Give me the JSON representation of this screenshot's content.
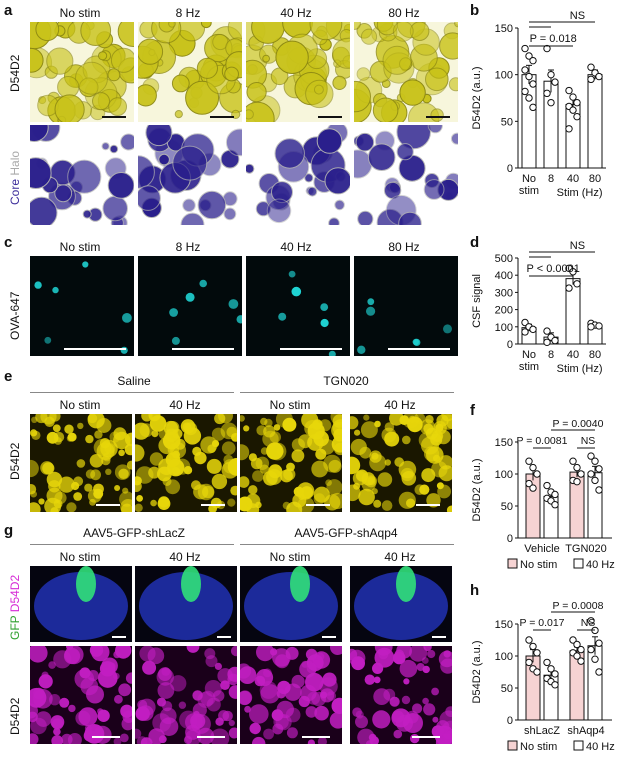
{
  "panels": {
    "a": {
      "label": "a",
      "columns": [
        "No stim",
        "8 Hz",
        "40 Hz",
        "80 Hz"
      ],
      "row_labels": [
        "D54D2",
        "Core",
        "Halo"
      ]
    },
    "c": {
      "label": "c",
      "columns": [
        "No stim",
        "8 Hz",
        "40 Hz",
        "80 Hz"
      ],
      "row_label": "OVA-647"
    },
    "e": {
      "label": "e",
      "groups": [
        "Saline",
        "TGN020"
      ],
      "columns": [
        "No stim",
        "40 Hz",
        "No stim",
        "40 Hz"
      ],
      "row_label": "D54D2"
    },
    "g": {
      "label": "g",
      "groups": [
        "AAV5-GFP-shLacZ",
        "AAV5-GFP-shAqp4"
      ],
      "columns": [
        "No stim",
        "40 Hz",
        "No stim",
        "40 Hz"
      ],
      "row_labels": [
        "GFP",
        "D54D2",
        "D54D2"
      ]
    }
  },
  "chart_data": [
    {
      "panel": "b",
      "type": "bar",
      "ylabel": "D54D2 (a.u.)",
      "xlabel": "Stim (Hz)",
      "categories": [
        "No stim",
        "8",
        "40",
        "80"
      ],
      "values": [
        100,
        93,
        68,
        100
      ],
      "errors": [
        10,
        12,
        8,
        5
      ],
      "points": [
        [
          128,
          120,
          115,
          105,
          98,
          90,
          82,
          75,
          65
        ],
        [
          128,
          100,
          92,
          80,
          70
        ],
        [
          83,
          76,
          70,
          66,
          62,
          55,
          42
        ],
        [
          108,
          102,
          98,
          95
        ]
      ],
      "ylim": [
        0,
        150
      ],
      "yticks": [
        0,
        50,
        100,
        150
      ],
      "annotations": [
        "NS",
        "P = 0.018"
      ]
    },
    {
      "panel": "d",
      "type": "bar",
      "ylabel": "CSF signal",
      "xlabel": "Stim (Hz)",
      "categories": [
        "No stim",
        "8",
        "40",
        "80"
      ],
      "values": [
        95,
        40,
        380,
        110
      ],
      "errors": [
        20,
        25,
        35,
        10
      ],
      "points": [
        [
          125,
          100,
          85,
          70
        ],
        [
          75,
          40,
          20,
          10
        ],
        [
          440,
          420,
          350,
          325
        ],
        [
          120,
          110,
          105,
          100
        ]
      ],
      "ylim": [
        0,
        500
      ],
      "yticks": [
        0,
        100,
        200,
        300,
        400,
        500
      ],
      "annotations": [
        "NS",
        "P < 0.0001"
      ]
    },
    {
      "panel": "f",
      "type": "bar",
      "ylabel": "D54D2 (a.u.)",
      "categories": [
        "Vehicle",
        "TGN020"
      ],
      "series": [
        {
          "name": "No stim",
          "values": [
            100,
            103
          ],
          "errors": [
            10,
            8
          ],
          "points": [
            [
              120,
              110,
              100,
              85,
              78
            ],
            [
              120,
              110,
              100,
              90,
              88
            ]
          ],
          "color": "#f6d3d3"
        },
        {
          "name": "40 Hz",
          "values": [
            65,
            102
          ],
          "errors": [
            6,
            10
          ],
          "points": [
            [
              82,
              72,
              68,
              62,
              58,
              52
            ],
            [
              128,
              120,
              108,
              100,
              90,
              75
            ]
          ],
          "color": "#ffffff"
        }
      ],
      "ylim": [
        0,
        150
      ],
      "yticks": [
        0,
        50,
        100,
        150
      ],
      "annotations": [
        "P = 0.0081",
        "NS",
        "P = 0.0040"
      ],
      "legend": [
        "No stim",
        "40 Hz"
      ]
    },
    {
      "panel": "h",
      "type": "bar",
      "ylabel": "D54D2 (a.u.)",
      "categories": [
        "shLacZ",
        "shAqp4"
      ],
      "series": [
        {
          "name": "No stim",
          "values": [
            100,
            108
          ],
          "errors": [
            10,
            6
          ],
          "points": [
            [
              125,
              115,
              105,
              90,
              80,
              75
            ],
            [
              125,
              118,
              110,
              105,
              100,
              92
            ]
          ],
          "color": "#f6d3d3"
        },
        {
          "name": "40 Hz",
          "values": [
            70,
            116
          ],
          "errors": [
            6,
            14
          ],
          "points": [
            [
              90,
              80,
              72,
              65,
              60,
              55
            ],
            [
              155,
              140,
              120,
              110,
              95,
              75
            ]
          ],
          "color": "#ffffff"
        }
      ],
      "ylim": [
        0,
        150
      ],
      "yticks": [
        0,
        50,
        100,
        150
      ],
      "annotations": [
        "P = 0.017",
        "NS",
        "P = 0.0008"
      ],
      "legend": [
        "No stim",
        "40 Hz"
      ]
    }
  ]
}
